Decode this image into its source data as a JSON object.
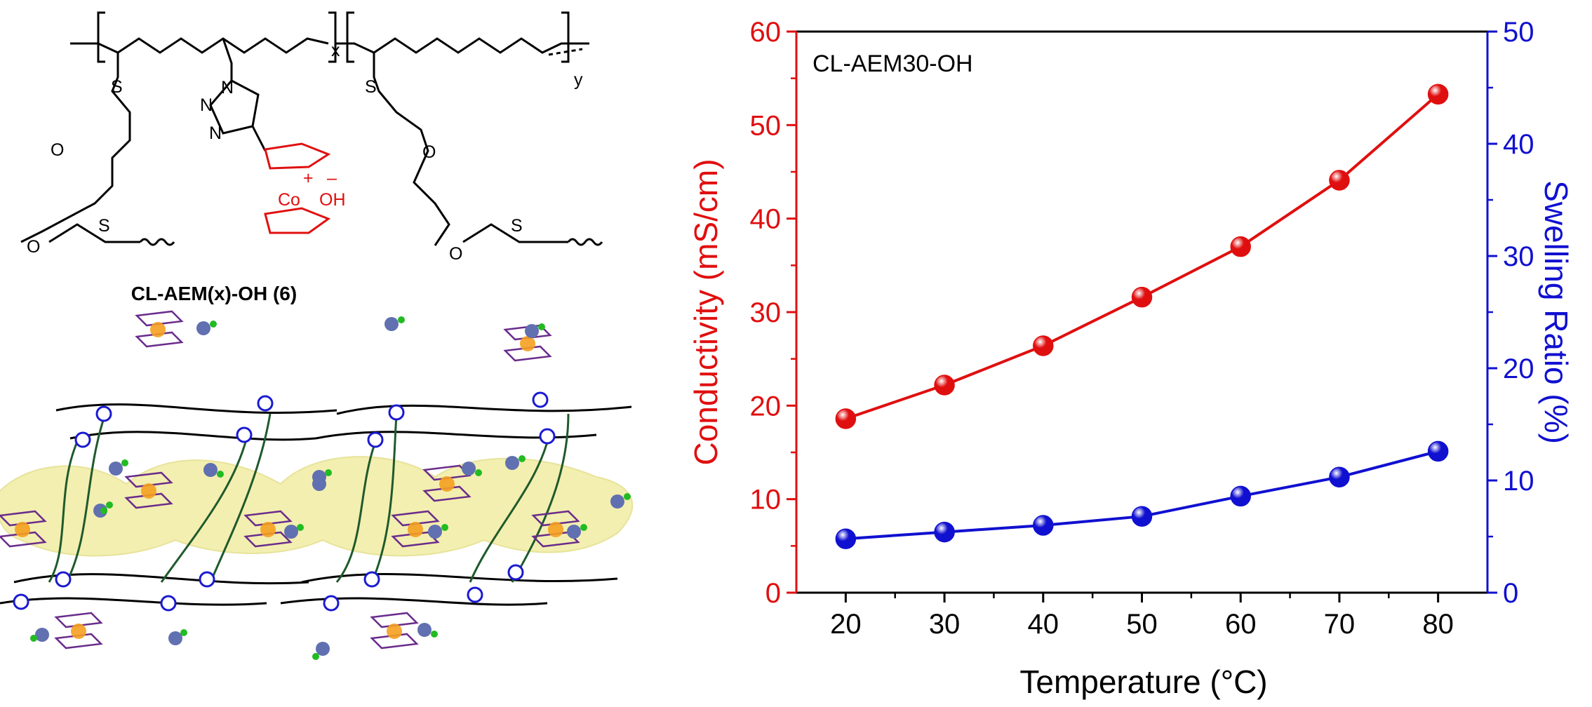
{
  "scheme": {
    "compound_label": "CL-AEM(x)-OH (6)",
    "x_subscript": "x",
    "y_subscript": "y",
    "atom_s": "S",
    "atom_o": "O",
    "atom_n": "N",
    "cobalt_label": "Co",
    "plus_sign": "+",
    "minus_sign": "–",
    "hydroxide_label": "OH"
  },
  "chart_data": {
    "type": "line",
    "annotation": "CL-AEM30-OH",
    "xlabel": "Temperature (°C)",
    "ylabel_left": "Conductivity (mS/cm)",
    "ylabel_right": "Swelling Ratio (%)",
    "x": [
      20,
      30,
      40,
      50,
      60,
      70,
      80
    ],
    "xlim": [
      15,
      85
    ],
    "xticks": [
      20,
      30,
      40,
      50,
      60,
      70,
      80
    ],
    "ylim_left": [
      0,
      60
    ],
    "yticks_left": [
      0,
      10,
      20,
      30,
      40,
      50,
      60
    ],
    "ylim_right": [
      0,
      50
    ],
    "yticks_right": [
      0,
      10,
      20,
      30,
      40,
      50
    ],
    "series": [
      {
        "axis": "left",
        "color": "#e00f0f",
        "values": [
          18.6,
          22.2,
          26.4,
          31.6,
          37.0,
          44.1,
          53.3
        ]
      },
      {
        "axis": "right",
        "color": "#1010d0",
        "values": [
          4.8,
          5.4,
          6.0,
          6.8,
          8.6,
          10.3,
          12.6
        ]
      }
    ],
    "grid": false
  },
  "colors": {
    "left_axis": "#e00f0f",
    "right_axis": "#1010d0",
    "ferrocene": "#e01010",
    "cobaltocenium_purple": "#6a2c8c",
    "cobalt_core_orange": "#f5a020",
    "ionic_domain": "#f3efb0",
    "crosslinker_green": "#1f5a2c",
    "linker_blue": "#1a1ad0",
    "ion_sphere": "#6070b0",
    "ion_dot": "#22bb22"
  }
}
